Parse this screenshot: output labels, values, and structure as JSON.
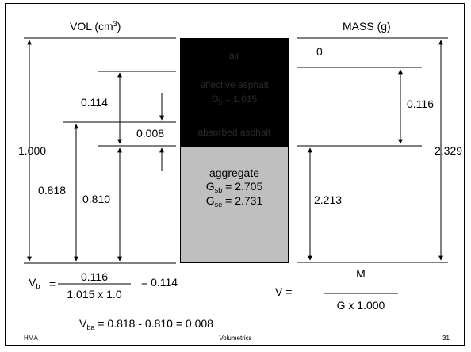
{
  "headers": {
    "volume_label": "VOL (cm",
    "volume_exp": "3",
    "volume_close": ")",
    "mass_label": "MASS (g)"
  },
  "phases": {
    "air_label": "air",
    "effective_asphalt_label": "effective asphalt",
    "effective_gravity_symbol": "G",
    "effective_gravity_sub": "b",
    "effective_gravity_value": " = 1.015",
    "absorbed_asphalt_label": "absorbed asphalt",
    "aggregate_label": "aggregate",
    "gsb_symbol": "G",
    "gsb_sub": "sb",
    "gsb_value": " = 2.705",
    "gse_symbol": "G",
    "gse_sub": "se",
    "gse_value": " = 2.731"
  },
  "volume_values": {
    "effective_asphalt": "0.114",
    "absorbed_asphalt": "0.008",
    "total": "1.000",
    "aggregate_bulk": "0.818",
    "aggregate_effective": "0.810"
  },
  "mass_values": {
    "air": "0",
    "effective_asphalt": "0.116",
    "total": "2.329",
    "aggregate": "2.213"
  },
  "equations": {
    "vb_symbol": "V",
    "vb_sub": "b",
    "vb_equals": "=",
    "vb_numerator": "0.116",
    "vb_denominator": "1.015 x 1.0",
    "vb_result": "= 0.114",
    "v_lhs": "V =",
    "v_numerator": "M",
    "v_denominator": "G x 1.000",
    "vba_symbol": "V",
    "vba_sub": "ba",
    "vba_expression": "= 0.818 - 0.810 = 0.008"
  },
  "footer": {
    "left": "HMA",
    "center": "Volumetrics",
    "page_number": "31"
  },
  "colors": {
    "phase_fill": "#000000",
    "aggregate_fill": "#bfbfbf",
    "phase_label_text": "#2a2a2a"
  }
}
